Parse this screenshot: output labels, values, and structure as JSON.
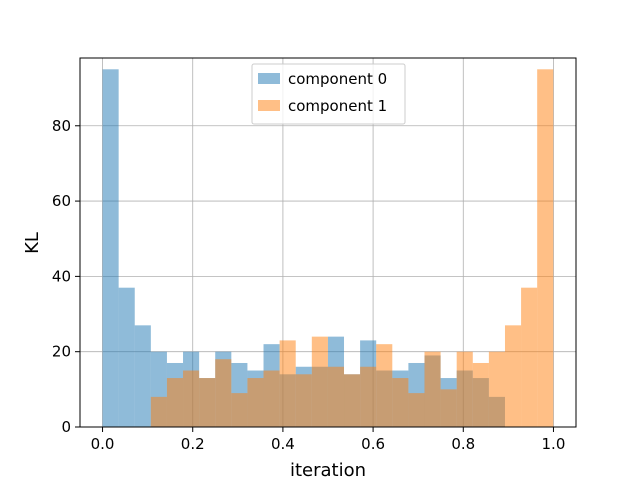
{
  "chart_data": {
    "type": "bar",
    "title": "",
    "xlabel": "iteration",
    "ylabel": "KL",
    "xlim": [
      -0.05,
      1.05
    ],
    "ylim": [
      0,
      98
    ],
    "xticks": [
      0.0,
      0.2,
      0.4,
      0.6,
      0.8,
      1.0
    ],
    "xtick_labels": [
      "0.0",
      "0.2",
      "0.4",
      "0.6",
      "0.8",
      "1.0"
    ],
    "yticks": [
      0,
      20,
      40,
      60,
      80
    ],
    "ytick_labels": [
      "0",
      "20",
      "40",
      "60",
      "80"
    ],
    "grid": true,
    "legend_position": "top-center",
    "bin_start": 0.0,
    "bin_width": 0.0357,
    "series": [
      {
        "name": "component 0",
        "color": "#1f77b4",
        "opacity": 0.5,
        "values": [
          95,
          37,
          27,
          20,
          17,
          20,
          13,
          20,
          17,
          15,
          22,
          14,
          16,
          16,
          24,
          14,
          23,
          15,
          15,
          17,
          19,
          13,
          15,
          13,
          8,
          0,
          0,
          0
        ]
      },
      {
        "name": "component 1",
        "color": "#ff7f0e",
        "opacity": 0.5,
        "values": [
          0,
          0,
          0,
          8,
          13,
          15,
          13,
          18,
          9,
          13,
          15,
          23,
          14,
          24,
          16,
          14,
          16,
          22,
          13,
          9,
          20,
          10,
          20,
          17,
          20,
          27,
          37,
          95
        ]
      }
    ]
  }
}
